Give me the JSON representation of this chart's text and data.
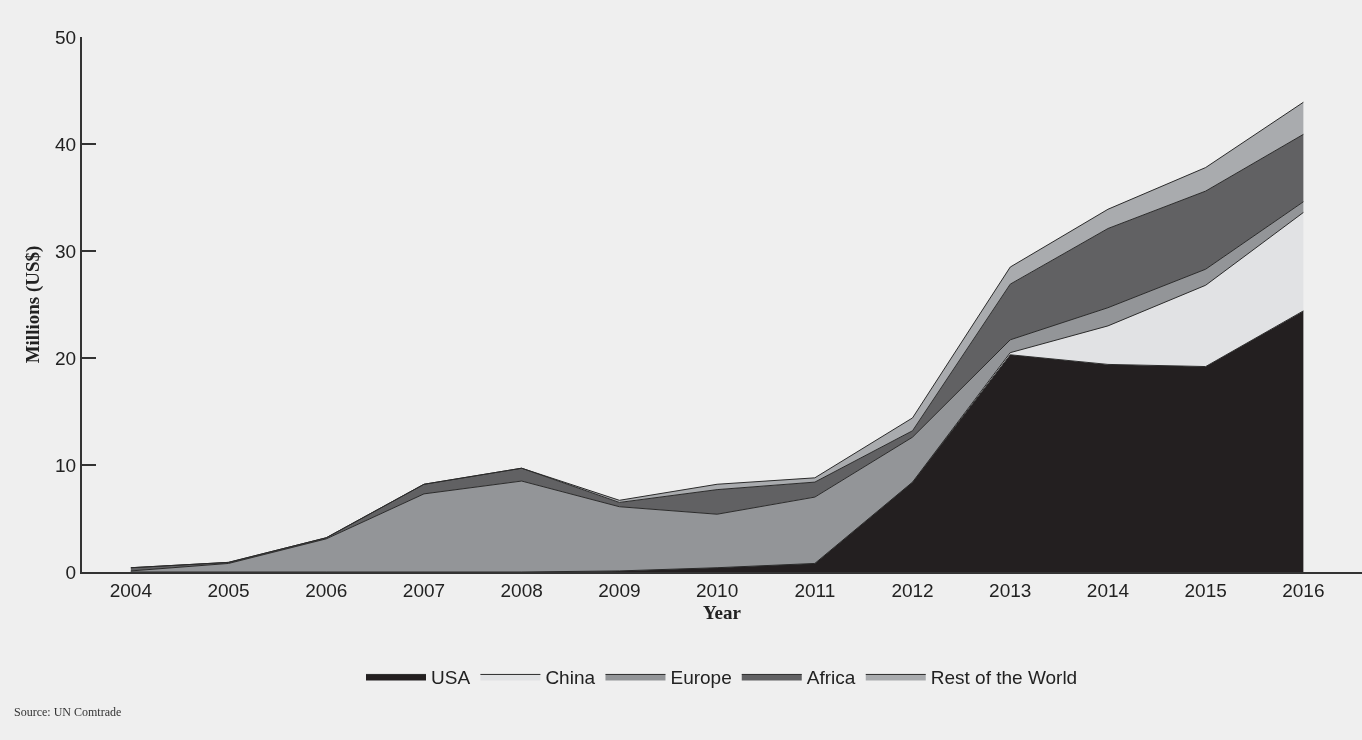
{
  "chart_data": {
    "type": "area",
    "stacked": true,
    "xlabel": "Year",
    "ylabel": "Millions (US$)",
    "x": [
      2004,
      2005,
      2006,
      2007,
      2008,
      2009,
      2010,
      2011,
      2012,
      2013,
      2014,
      2015,
      2016
    ],
    "series": [
      {
        "name": "USA",
        "color": "#231f20",
        "values": [
          0,
          0,
          0,
          0,
          0,
          0.1,
          0.4,
          0.8,
          8.4,
          20.3,
          19.4,
          19.2,
          24.4
        ]
      },
      {
        "name": "China",
        "color": "#e1e2e4",
        "values": [
          0,
          0,
          0,
          0,
          0,
          0,
          0,
          0,
          0,
          0.2,
          3.6,
          7.6,
          9.2
        ]
      },
      {
        "name": "Europe",
        "color": "#939598",
        "values": [
          0.1,
          0.8,
          3.1,
          7.3,
          8.5,
          6.0,
          5.0,
          6.2,
          4.2,
          1.2,
          1.7,
          1.5,
          1.0
        ]
      },
      {
        "name": "Africa",
        "color": "#616163",
        "values": [
          0.3,
          0.1,
          0.1,
          0.9,
          1.2,
          0.4,
          2.3,
          1.4,
          0.6,
          5.2,
          7.4,
          7.3,
          6.3
        ]
      },
      {
        "name": "Rest of the World",
        "color": "#a9abae",
        "values": [
          0,
          0,
          0,
          0,
          0,
          0.2,
          0.5,
          0.4,
          1.2,
          1.6,
          1.8,
          2.2,
          3.0
        ]
      }
    ],
    "xlim": [
      2003.5,
      2016.6
    ],
    "xticks": [
      2004,
      2005,
      2006,
      2007,
      2008,
      2009,
      2010,
      2011,
      2012,
      2013,
      2014,
      2015,
      2016
    ],
    "ylim": [
      0,
      50
    ],
    "yticks": [
      0,
      10,
      20,
      30,
      40,
      50
    ],
    "grid": false,
    "legend": "bottom",
    "annotations": [
      "Source: UN Comtrade"
    ]
  }
}
